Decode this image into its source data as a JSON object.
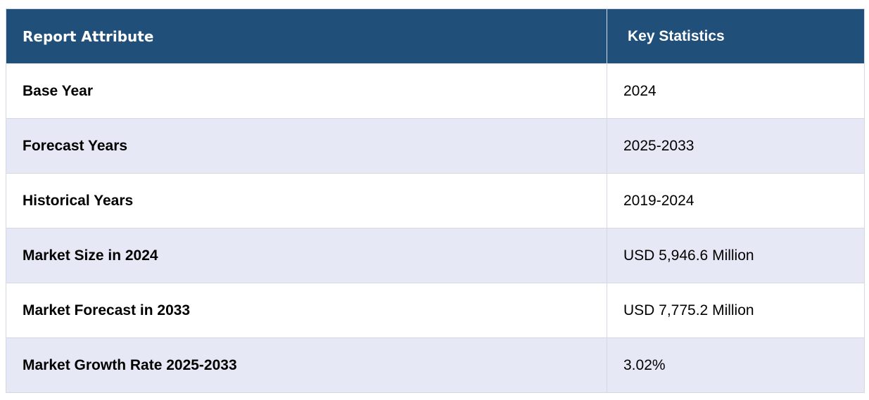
{
  "table": {
    "headers": [
      "Report Attribute",
      "Key Statistics"
    ],
    "rows": [
      {
        "attribute": "Base Year",
        "value": "2024"
      },
      {
        "attribute": "Forecast Years",
        "value": "2025-2033"
      },
      {
        "attribute": "Historical Years",
        "value": "2019-2024"
      },
      {
        "attribute": "Market Size in 2024",
        "value": "USD 5,946.6 Million"
      },
      {
        "attribute": "Market Forecast in 2033",
        "value": "USD 7,775.2 Million"
      },
      {
        "attribute": "Market Growth Rate 2025-2033",
        "value": "3.02%"
      }
    ]
  },
  "colors": {
    "header_bg": "#204f79",
    "header_text": "#ffffff",
    "row_alt_bg": "#e6e9f5",
    "row_bg": "#ffffff",
    "border": "#d4d8e4"
  }
}
